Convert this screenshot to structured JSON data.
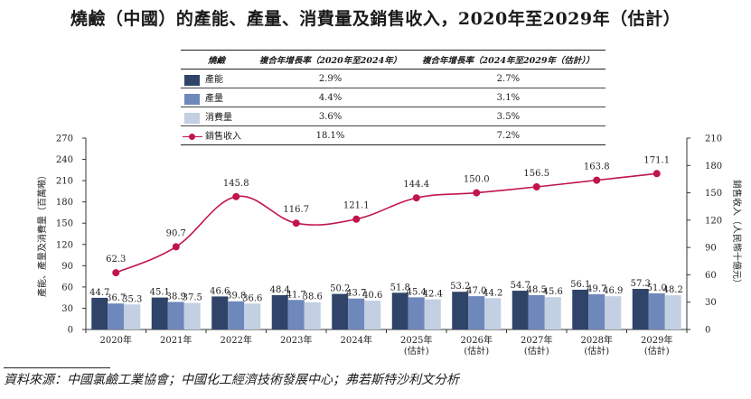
{
  "title": "燒鹼（中國）的產能、產量、消費量及銷售收入，2020年至2029年（估計）",
  "legend_table": {
    "header": [
      "燒鹼",
      "複合年增長率（2020年至2024年）",
      "複合年增長率（2024年至2029年（估計））"
    ],
    "rows": [
      {
        "name": "產能",
        "cagr1": "2.9%",
        "cagr2": "2.7%",
        "color": "#2f4468"
      },
      {
        "name": "產量",
        "cagr1": "4.4%",
        "cagr2": "3.1%",
        "color": "#6f88bb"
      },
      {
        "name": "消費量",
        "cagr1": "3.6%",
        "cagr2": "3.5%",
        "color": "#c3cfe2"
      },
      {
        "name": "銷售收入",
        "cagr1": "18.1%",
        "cagr2": "7.2%",
        "color": "#c0154a"
      }
    ]
  },
  "chart_data": {
    "type": "bar",
    "categories": [
      "2020年",
      "2021年",
      "2022年",
      "2023年",
      "2024年",
      "2025年\n(估計)",
      "2026年\n(估計)",
      "2027年\n(估計)",
      "2028年\n(估計)",
      "2029年\n(估計)"
    ],
    "series": [
      {
        "name": "產能",
        "type": "bar",
        "axis": "left",
        "color": "#2f4468",
        "values": [
          44.7,
          45.1,
          46.6,
          48.4,
          50.2,
          51.8,
          53.2,
          54.7,
          56.1,
          57.3
        ]
      },
      {
        "name": "產量",
        "type": "bar",
        "axis": "left",
        "color": "#6f88bb",
        "values": [
          36.7,
          38.9,
          39.8,
          41.7,
          43.7,
          45.4,
          47.0,
          48.5,
          49.7,
          51.0
        ]
      },
      {
        "name": "消費量",
        "type": "bar",
        "axis": "left",
        "color": "#c3cfe2",
        "values": [
          35.3,
          37.5,
          36.6,
          38.6,
          40.6,
          42.4,
          44.2,
          45.6,
          46.9,
          48.2
        ]
      },
      {
        "name": "銷售收入",
        "type": "line",
        "axis": "right",
        "color": "#c0154a",
        "values": [
          62.3,
          90.7,
          145.8,
          116.7,
          121.1,
          144.4,
          150.0,
          156.5,
          163.8,
          171.1
        ]
      }
    ],
    "ylabel": "產能、產量及消費量（百萬噸）",
    "y2label": "銷售收入（人民幣十億元）",
    "ylim": [
      0,
      270
    ],
    "yticks": [
      0,
      30,
      60,
      90,
      120,
      150,
      180,
      210,
      240,
      270
    ],
    "y2lim": [
      0,
      210
    ],
    "y2ticks": [
      0,
      30,
      60,
      90,
      120,
      150,
      180,
      210
    ]
  },
  "source": "資料來源：中國氯鹼工業協會；中國化工經濟技術發展中心；弗若斯特沙利文分析"
}
